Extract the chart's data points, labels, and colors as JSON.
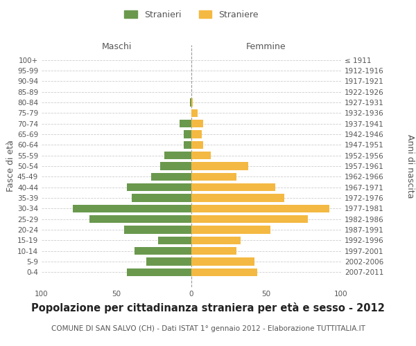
{
  "age_groups": [
    "100+",
    "95-99",
    "90-94",
    "85-89",
    "80-84",
    "75-79",
    "70-74",
    "65-69",
    "60-64",
    "55-59",
    "50-54",
    "45-49",
    "40-44",
    "35-39",
    "30-34",
    "25-29",
    "20-24",
    "15-19",
    "10-14",
    "5-9",
    "0-4"
  ],
  "birth_years": [
    "≤ 1911",
    "1912-1916",
    "1917-1921",
    "1922-1926",
    "1927-1931",
    "1932-1936",
    "1937-1941",
    "1942-1946",
    "1947-1951",
    "1952-1956",
    "1957-1961",
    "1962-1966",
    "1967-1971",
    "1972-1976",
    "1977-1981",
    "1982-1986",
    "1987-1991",
    "1992-1996",
    "1997-2001",
    "2002-2006",
    "2007-2011"
  ],
  "maschi": [
    0,
    0,
    0,
    0,
    1,
    0,
    8,
    5,
    5,
    18,
    21,
    27,
    43,
    40,
    79,
    68,
    45,
    22,
    38,
    30,
    43
  ],
  "femmine": [
    0,
    0,
    0,
    0,
    1,
    4,
    8,
    7,
    8,
    13,
    38,
    30,
    56,
    62,
    92,
    78,
    53,
    33,
    30,
    42,
    44
  ],
  "maschi_color": "#6a994e",
  "femmine_color": "#f4b942",
  "background_color": "#ffffff",
  "grid_color": "#cccccc",
  "text_color": "#555555",
  "title": "Popolazione per cittadinanza straniera per età e sesso - 2012",
  "subtitle": "COMUNE DI SAN SALVO (CH) - Dati ISTAT 1° gennaio 2012 - Elaborazione TUTTITALIA.IT",
  "xlabel_left": "Maschi",
  "xlabel_right": "Femmine",
  "ylabel_left": "Fasce di età",
  "ylabel_right": "Anni di nascita",
  "legend_stranieri": "Stranieri",
  "legend_straniere": "Straniere",
  "xlim": 100,
  "title_fontsize": 10.5,
  "subtitle_fontsize": 7.5,
  "tick_fontsize": 7.5,
  "label_fontsize": 9
}
